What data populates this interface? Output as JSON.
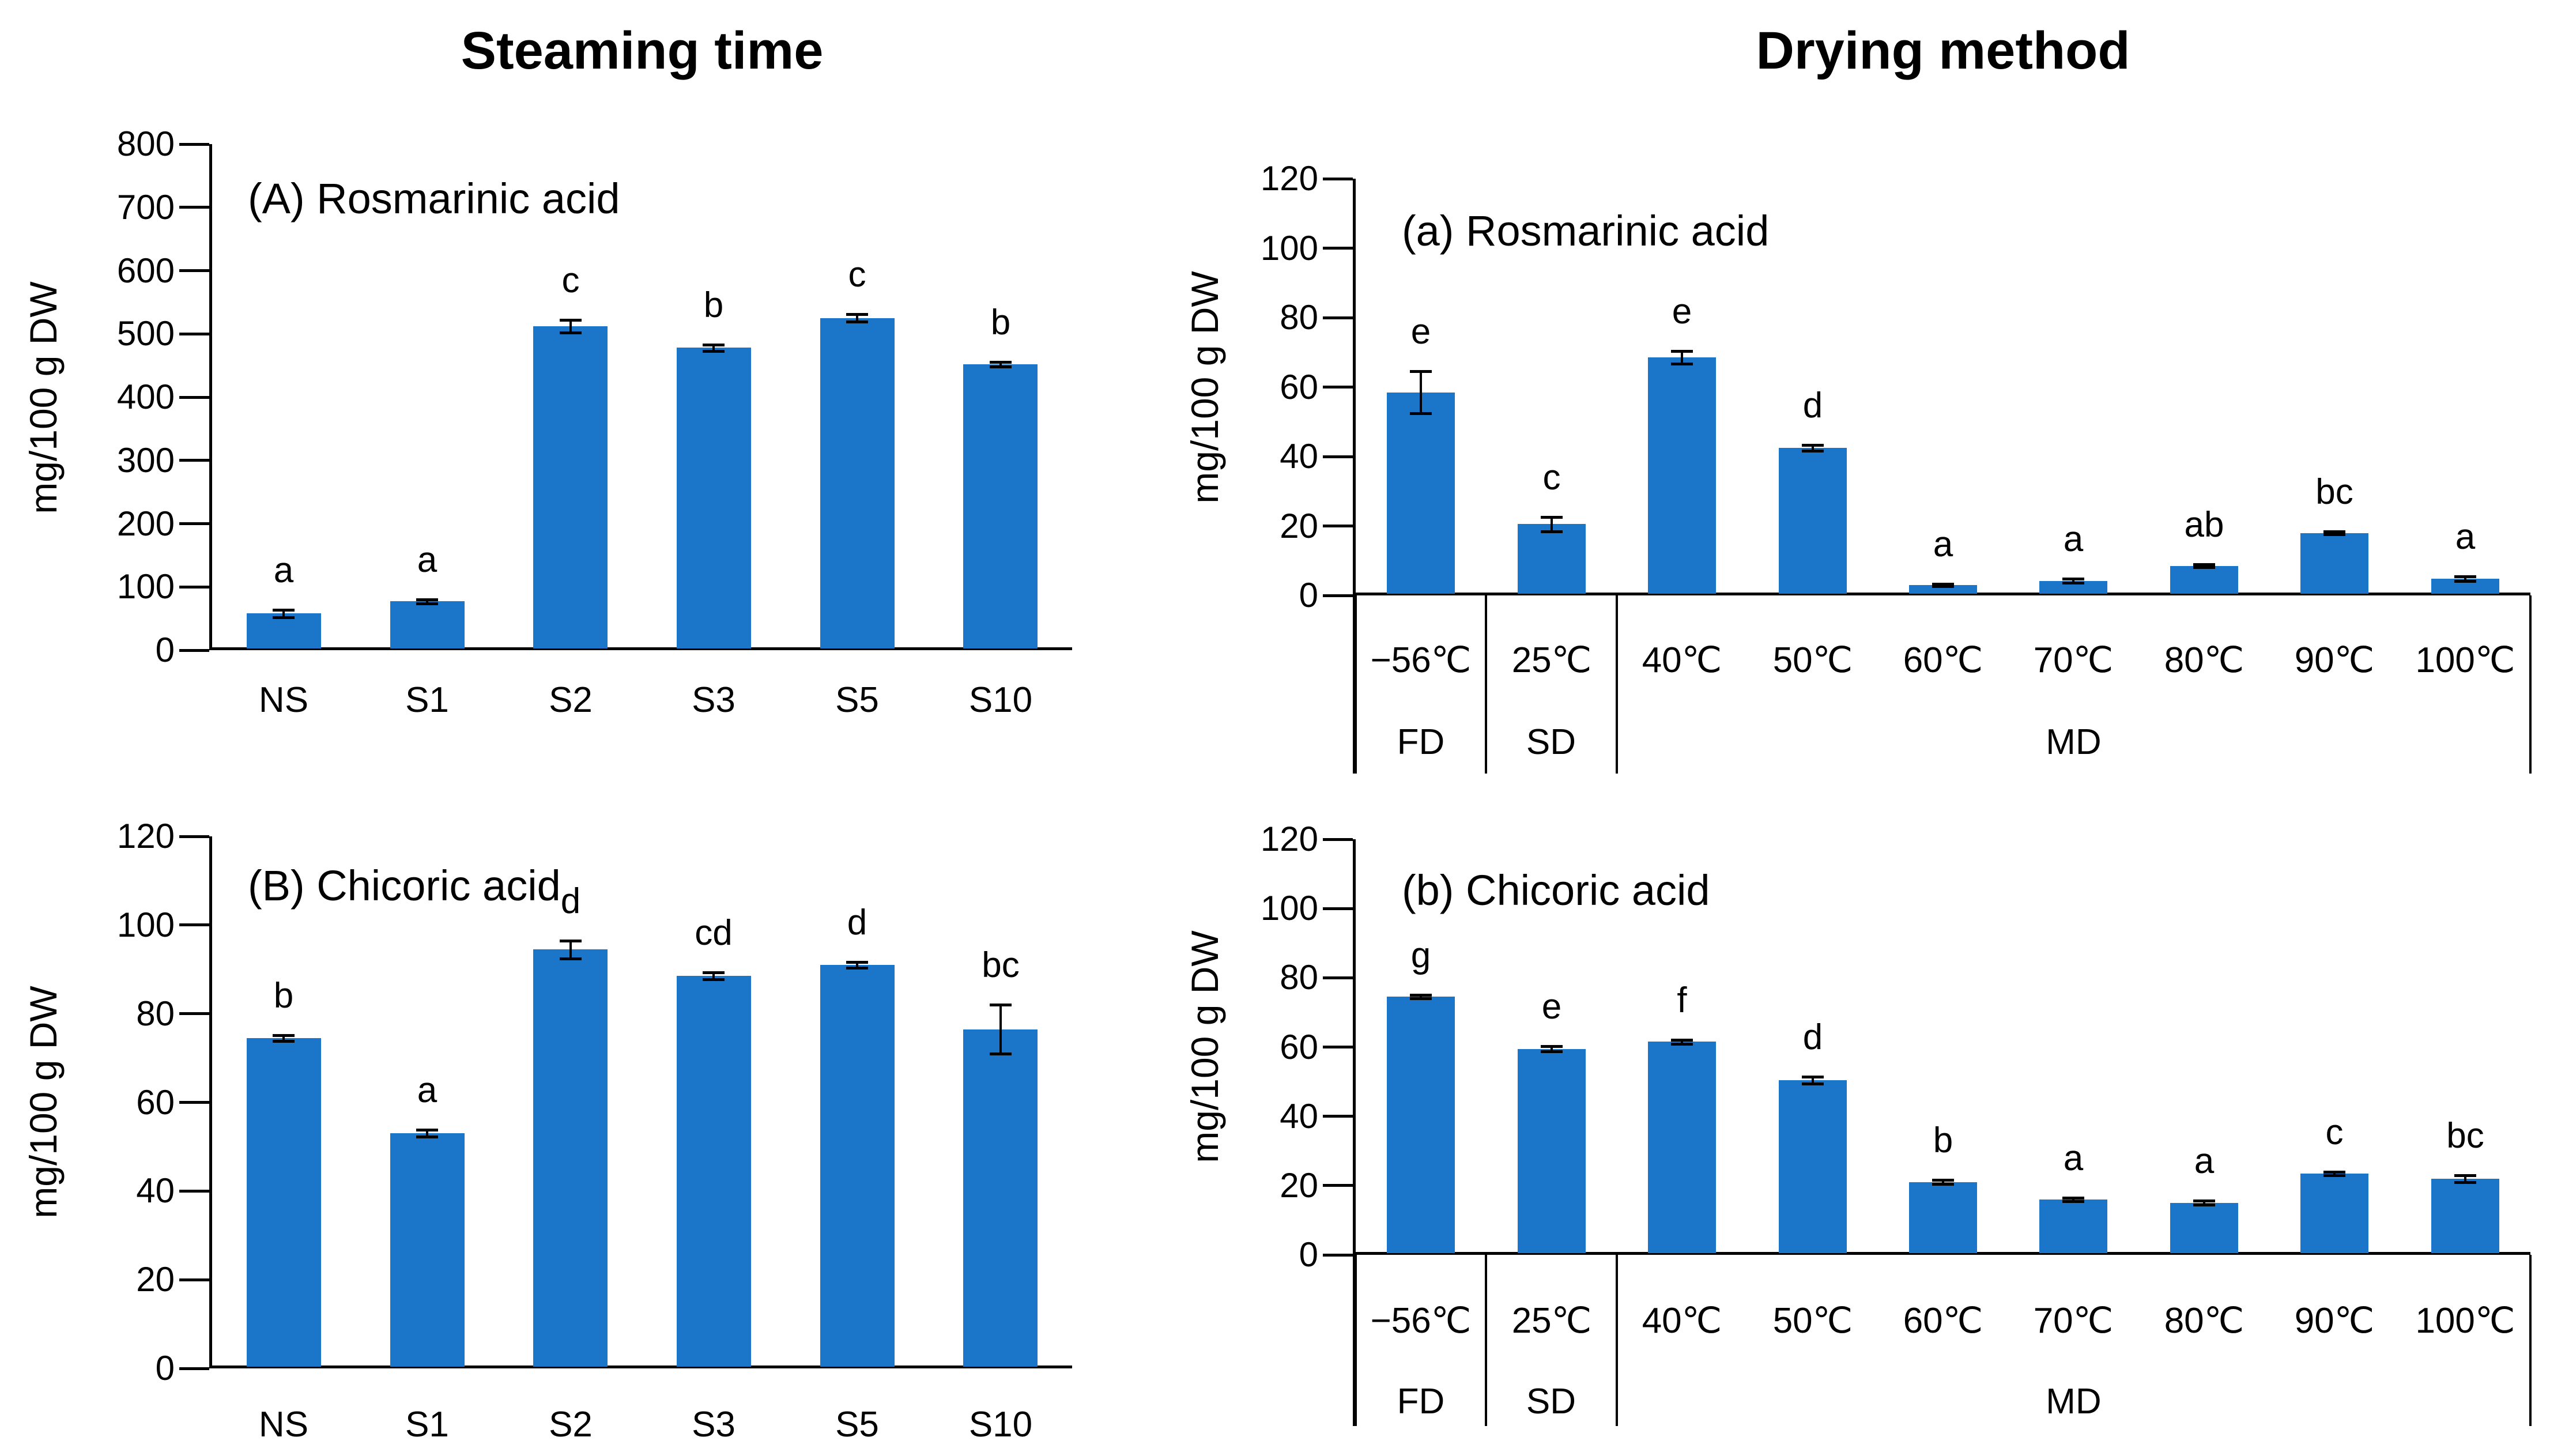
{
  "figure": {
    "background": "#ffffff",
    "bar_color": "#1B75C8",
    "axis_color": "#000000",
    "text_color": "#000000",
    "left_column_title": "Steaming time",
    "right_column_title": "Drying method",
    "y_axis_title": "mg/100 g DW"
  },
  "chart_data": [
    {
      "id": "A",
      "type": "bar",
      "panel_label": "(A) Rosmarinic acid",
      "column": "Steaming time",
      "ylabel": "mg/100 g DW",
      "ylim": [
        0,
        800
      ],
      "ytick_step": 100,
      "grid": false,
      "legend": "none",
      "categories": [
        "NS",
        "S1",
        "S2",
        "S3",
        "S5",
        "S10"
      ],
      "values": [
        58,
        77,
        512,
        478,
        525,
        452
      ],
      "errors": [
        6,
        3,
        10,
        5,
        6,
        4
      ],
      "sig_letters": [
        "a",
        "a",
        "c",
        "b",
        "c",
        "b"
      ]
    },
    {
      "id": "B",
      "type": "bar",
      "panel_label": "(B) Chicoric acid",
      "column": "Steaming time",
      "ylabel": "mg/100 g DW",
      "ylim": [
        0,
        120
      ],
      "ytick_step": 20,
      "grid": false,
      "legend": "none",
      "categories": [
        "NS",
        "S1",
        "S2",
        "S3",
        "S5",
        "S10"
      ],
      "values": [
        74.5,
        53,
        94.5,
        88.5,
        91,
        76.5
      ],
      "errors": [
        0.6,
        0.8,
        2,
        0.8,
        0.6,
        5.5
      ],
      "sig_letters": [
        "b",
        "a",
        "d",
        "cd",
        "d",
        "bc"
      ]
    },
    {
      "id": "a",
      "type": "bar",
      "panel_label": "(a) Rosmarinic acid",
      "column": "Drying method",
      "ylabel": "mg/100 g DW",
      "ylim": [
        0,
        120
      ],
      "ytick_step": 20,
      "grid": false,
      "legend": "none",
      "categories": [
        "−56℃",
        "25℃",
        "40℃",
        "50℃",
        "60℃",
        "70℃",
        "80℃",
        "90℃",
        "100℃"
      ],
      "values": [
        58.5,
        20.5,
        68.5,
        42.5,
        3,
        4.2,
        8.5,
        18,
        4.8
      ],
      "errors": [
        6,
        2,
        1.8,
        0.8,
        0.4,
        0.6,
        0.4,
        0.4,
        0.6
      ],
      "sig_letters": [
        "e",
        "c",
        "e",
        "d",
        "a",
        "a",
        "ab",
        "bc",
        "a"
      ],
      "group_row": [
        {
          "label": "FD",
          "span": [
            0,
            0
          ]
        },
        {
          "label": "SD",
          "span": [
            1,
            1
          ]
        },
        {
          "label": "MD",
          "span": [
            2,
            8
          ]
        }
      ]
    },
    {
      "id": "b",
      "type": "bar",
      "panel_label": "(b) Chicoric acid",
      "column": "Drying method",
      "ylabel": "mg/100 g DW",
      "ylim": [
        0,
        120
      ],
      "ytick_step": 20,
      "grid": false,
      "legend": "none",
      "categories": [
        "−56℃",
        "25℃",
        "40℃",
        "50℃",
        "60℃",
        "70℃",
        "80℃",
        "90℃",
        "100℃"
      ],
      "values": [
        74.5,
        59.5,
        61.5,
        50.5,
        21,
        16,
        15,
        23.5,
        22
      ],
      "errors": [
        0.5,
        0.8,
        0.6,
        1,
        0.6,
        0.5,
        0.6,
        0.5,
        1
      ],
      "sig_letters": [
        "g",
        "e",
        "f",
        "d",
        "b",
        "a",
        "a",
        "c",
        "bc"
      ],
      "group_row": [
        {
          "label": "FD",
          "span": [
            0,
            0
          ]
        },
        {
          "label": "SD",
          "span": [
            1,
            1
          ]
        },
        {
          "label": "MD",
          "span": [
            2,
            8
          ]
        }
      ]
    }
  ]
}
